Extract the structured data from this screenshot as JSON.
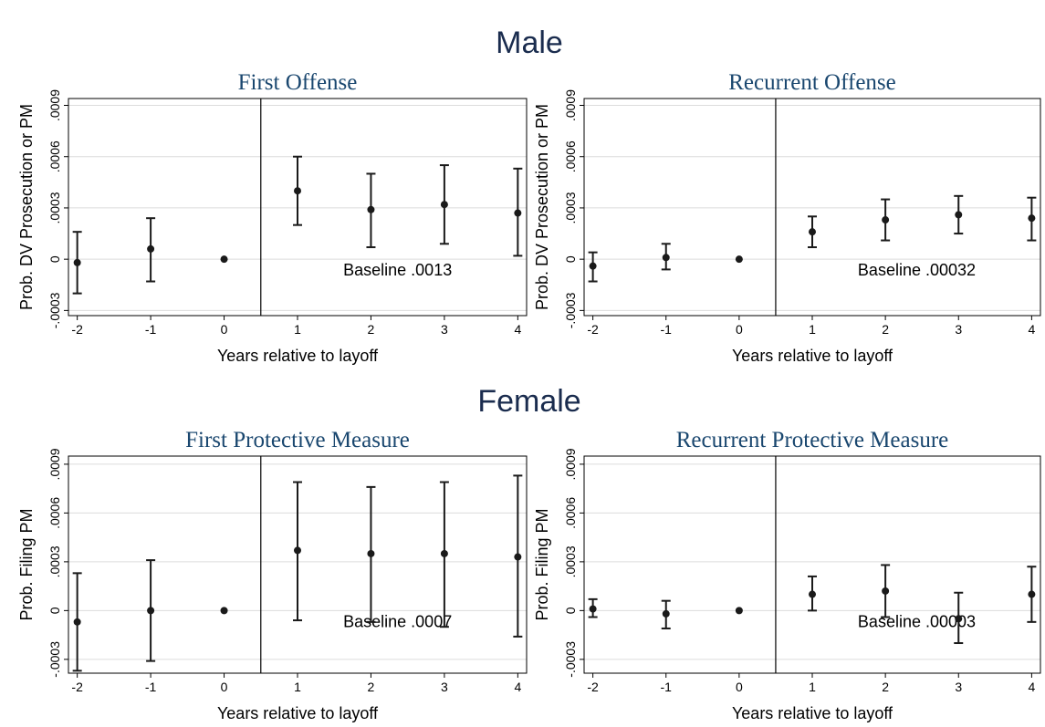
{
  "headings": [
    "Male",
    "Female"
  ],
  "chart_data": [
    {
      "type": "errorbar",
      "title": "First Offense",
      "x_label": "Years relative to layoff",
      "y_label": "Prob. DV Prosecution or PM",
      "x": [
        -2,
        -1,
        0,
        1,
        2,
        3,
        4
      ],
      "values": [
        -2e-05,
        6e-05,
        0,
        0.0004,
        0.00029,
        0.00032,
        0.00027
      ],
      "lower": [
        -0.0002,
        -0.00013,
        0,
        0.0002,
        7e-05,
        9e-05,
        2e-05
      ],
      "upper": [
        0.00016,
        0.00024,
        0,
        0.0006,
        0.0005,
        0.00055,
        0.00053
      ],
      "color": "#1a1a1a",
      "annotation": "Baseline .0013",
      "vline": 0.5,
      "xlim": [
        -2.12,
        4.12
      ],
      "xticks": [
        -2,
        -1,
        0,
        1,
        2,
        3,
        4
      ],
      "ylim": [
        -0.00033,
        0.00094
      ],
      "yticks": [
        {
          "value": -0.0003,
          "label": "-.0003"
        },
        0,
        {
          "value": 0.0003,
          "label": ".0003"
        },
        {
          "value": 0.0006,
          "label": ".0006"
        },
        {
          "value": 0.0009,
          "label": ".0009"
        }
      ],
      "grid": true
    },
    {
      "type": "errorbar",
      "title": "Recurrent Offense",
      "x_label": "Years relative to layoff",
      "y_label": "Prob. DV Prosecution or PM",
      "x": [
        -2,
        -1,
        0,
        1,
        2,
        3,
        4
      ],
      "values": [
        -4e-05,
        1e-05,
        0,
        0.00016,
        0.00023,
        0.00026,
        0.00024
      ],
      "lower": [
        -0.00013,
        -6e-05,
        0,
        7e-05,
        0.00011,
        0.00015,
        0.00011
      ],
      "upper": [
        4e-05,
        9e-05,
        0,
        0.00025,
        0.00035,
        0.00037,
        0.00036
      ],
      "color": "#1a1a1a",
      "annotation": "Baseline .00032",
      "vline": 0.5,
      "xlim": [
        -2.12,
        4.12
      ],
      "xticks": [
        -2,
        -1,
        0,
        1,
        2,
        3,
        4
      ],
      "ylim": [
        -0.00033,
        0.00094
      ],
      "yticks": [
        {
          "value": -0.0003,
          "label": "-.0003"
        },
        0,
        {
          "value": 0.0003,
          "label": ".0003"
        },
        {
          "value": 0.0006,
          "label": ".0006"
        },
        {
          "value": 0.0009,
          "label": ".0009"
        }
      ],
      "grid": true
    },
    {
      "type": "errorbar",
      "title": "First Protective Measure",
      "x_label": "Years relative to layoff",
      "y_label": "Prob. Filing PM",
      "x": [
        -2,
        -1,
        0,
        1,
        2,
        3,
        4
      ],
      "values": [
        -7e-05,
        0,
        0,
        0.00037,
        0.00035,
        0.00035,
        0.00033
      ],
      "lower": [
        -0.00037,
        -0.00031,
        0,
        -6e-05,
        -7e-05,
        -0.0001,
        -0.00016
      ],
      "upper": [
        0.00023,
        0.00031,
        0,
        0.00079,
        0.00076,
        0.00079,
        0.00083
      ],
      "color": "#1a1a1a",
      "annotation": "Baseline .0007",
      "vline": 0.5,
      "xlim": [
        -2.12,
        4.12
      ],
      "xticks": [
        -2,
        -1,
        0,
        1,
        2,
        3,
        4
      ],
      "ylim": [
        -0.000385,
        0.00095
      ],
      "yticks": [
        {
          "value": -0.0003,
          "label": "-.0003"
        },
        0,
        {
          "value": 0.0003,
          "label": ".0003"
        },
        {
          "value": 0.0006,
          "label": ".0006"
        },
        {
          "value": 0.0009,
          "label": ".0009"
        }
      ],
      "grid": true
    },
    {
      "type": "errorbar",
      "title": "Recurrent Protective Measure",
      "x_label": "Years relative to layoff",
      "y_label": "Prob. Filing PM",
      "x": [
        -2,
        -1,
        0,
        1,
        2,
        3,
        4
      ],
      "values": [
        1e-05,
        -2e-05,
        0,
        0.0001,
        0.00012,
        -5e-05,
        0.0001
      ],
      "lower": [
        -4e-05,
        -0.00011,
        0,
        0,
        -4e-05,
        -0.0002,
        -7e-05
      ],
      "upper": [
        7e-05,
        6e-05,
        0,
        0.00021,
        0.00028,
        0.00011,
        0.00027
      ],
      "color": "#1a1a1a",
      "annotation": "Baseline .00003",
      "vline": 0.5,
      "xlim": [
        -2.12,
        4.12
      ],
      "xticks": [
        -2,
        -1,
        0,
        1,
        2,
        3,
        4
      ],
      "ylim": [
        -0.000385,
        0.00095
      ],
      "yticks": [
        {
          "value": -0.0003,
          "label": "-.0003"
        },
        0,
        {
          "value": 0.0003,
          "label": ".0003"
        },
        {
          "value": 0.0006,
          "label": ".0006"
        },
        {
          "value": 0.0009,
          "label": ".0009"
        }
      ],
      "grid": true
    }
  ]
}
